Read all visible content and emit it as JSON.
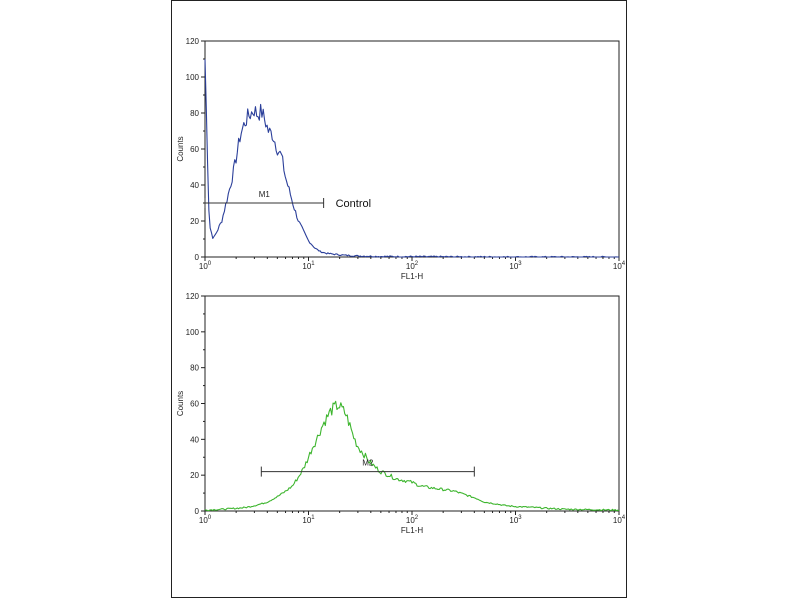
{
  "chart_data": [
    {
      "type": "line",
      "xlabel": "FL1-H",
      "ylabel": "Counts",
      "xscale": "log",
      "xlim": [
        1,
        10000
      ],
      "ylim": [
        0,
        120
      ],
      "xticks": [
        1,
        10,
        100,
        1000,
        10000
      ],
      "xtick_labels": [
        {
          "base": "10",
          "exp": "0"
        },
        {
          "base": "10",
          "exp": "1"
        },
        {
          "base": "10",
          "exp": "2"
        },
        {
          "base": "10",
          "exp": "3"
        },
        {
          "base": "10",
          "exp": "4"
        }
      ],
      "yticks": [
        0,
        20,
        40,
        60,
        80,
        100,
        120
      ],
      "ytick_labels": [
        "0",
        "20",
        "40",
        "60",
        "80",
        "100",
        "120"
      ],
      "grid": false,
      "color": "#2b3f9a",
      "gate": {
        "label": "M1",
        "x_start": 1,
        "x_end": 14,
        "y": 30
      },
      "annotation": "Control",
      "series": [
        {
          "x": [
            1.0,
            1.1,
            1.2,
            1.3,
            1.45,
            1.6,
            1.8,
            2.0,
            2.2,
            2.4,
            2.6,
            2.8,
            3.0,
            3.2,
            3.5,
            3.8,
            4.1,
            4.5,
            5.0,
            5.5,
            6.0,
            6.6,
            7.2,
            8.0,
            9.0,
            10.0,
            11.5,
            13.0,
            15.0,
            18.0,
            22.0,
            30.0,
            50.0,
            100.0,
            300.0,
            1000.0,
            10000.0
          ],
          "y": [
            110,
            18,
            10,
            14,
            20,
            30,
            42,
            55,
            68,
            74,
            78,
            80,
            82,
            79,
            81,
            76,
            70,
            68,
            60,
            56,
            44,
            36,
            28,
            20,
            14,
            9,
            5,
            3,
            2,
            1.5,
            1,
            0.6,
            0.3,
            0.2,
            0.1,
            0,
            0
          ]
        }
      ]
    },
    {
      "type": "line",
      "xlabel": "FL1-H",
      "ylabel": "Counts",
      "xscale": "log",
      "xlim": [
        1,
        10000
      ],
      "ylim": [
        0,
        120
      ],
      "xticks": [
        1,
        10,
        100,
        1000,
        10000
      ],
      "xtick_labels": [
        {
          "base": "10",
          "exp": "0"
        },
        {
          "base": "10",
          "exp": "1"
        },
        {
          "base": "10",
          "exp": "2"
        },
        {
          "base": "10",
          "exp": "3"
        },
        {
          "base": "10",
          "exp": "4"
        }
      ],
      "yticks": [
        0,
        20,
        40,
        60,
        80,
        100,
        120
      ],
      "ytick_labels": [
        "0",
        "20",
        "40",
        "60",
        "80",
        "100",
        "120"
      ],
      "grid": false,
      "color": "#3db52e",
      "gate": {
        "label": "M2",
        "x_start": 3.5,
        "x_end": 400,
        "y": 22
      },
      "annotation": "",
      "series": [
        {
          "x": [
            1.0,
            1.5,
            2.0,
            2.5,
            3.0,
            3.5,
            4.0,
            5.0,
            6.0,
            7.0,
            8.0,
            9.0,
            10.0,
            11.0,
            12.0,
            13.0,
            14.0,
            15.0,
            16.5,
            18.0,
            19.5,
            21.0,
            23.0,
            25.0,
            27.0,
            30.0,
            34.0,
            38.0,
            43.0,
            50.0,
            60.0,
            70.0,
            85.0,
            100.0,
            120.0,
            150.0,
            200.0,
            260.0,
            330.0,
            420.0,
            500.0,
            650.0,
            800.0,
            1000.0,
            1500.0,
            2000.0,
            3000.0,
            5000.0,
            10000.0
          ],
          "y": [
            0.5,
            1,
            1.5,
            2,
            3,
            4,
            5,
            8,
            11,
            14,
            19,
            24,
            30,
            36,
            40,
            45,
            49,
            52,
            56,
            58,
            59,
            57,
            54,
            48,
            42,
            36,
            32,
            28,
            25,
            22,
            20,
            18,
            17,
            16,
            14,
            13,
            12,
            11,
            9,
            7,
            5,
            4,
            3,
            2.5,
            2,
            1.5,
            1,
            0.8,
            0.5
          ]
        }
      ]
    }
  ]
}
